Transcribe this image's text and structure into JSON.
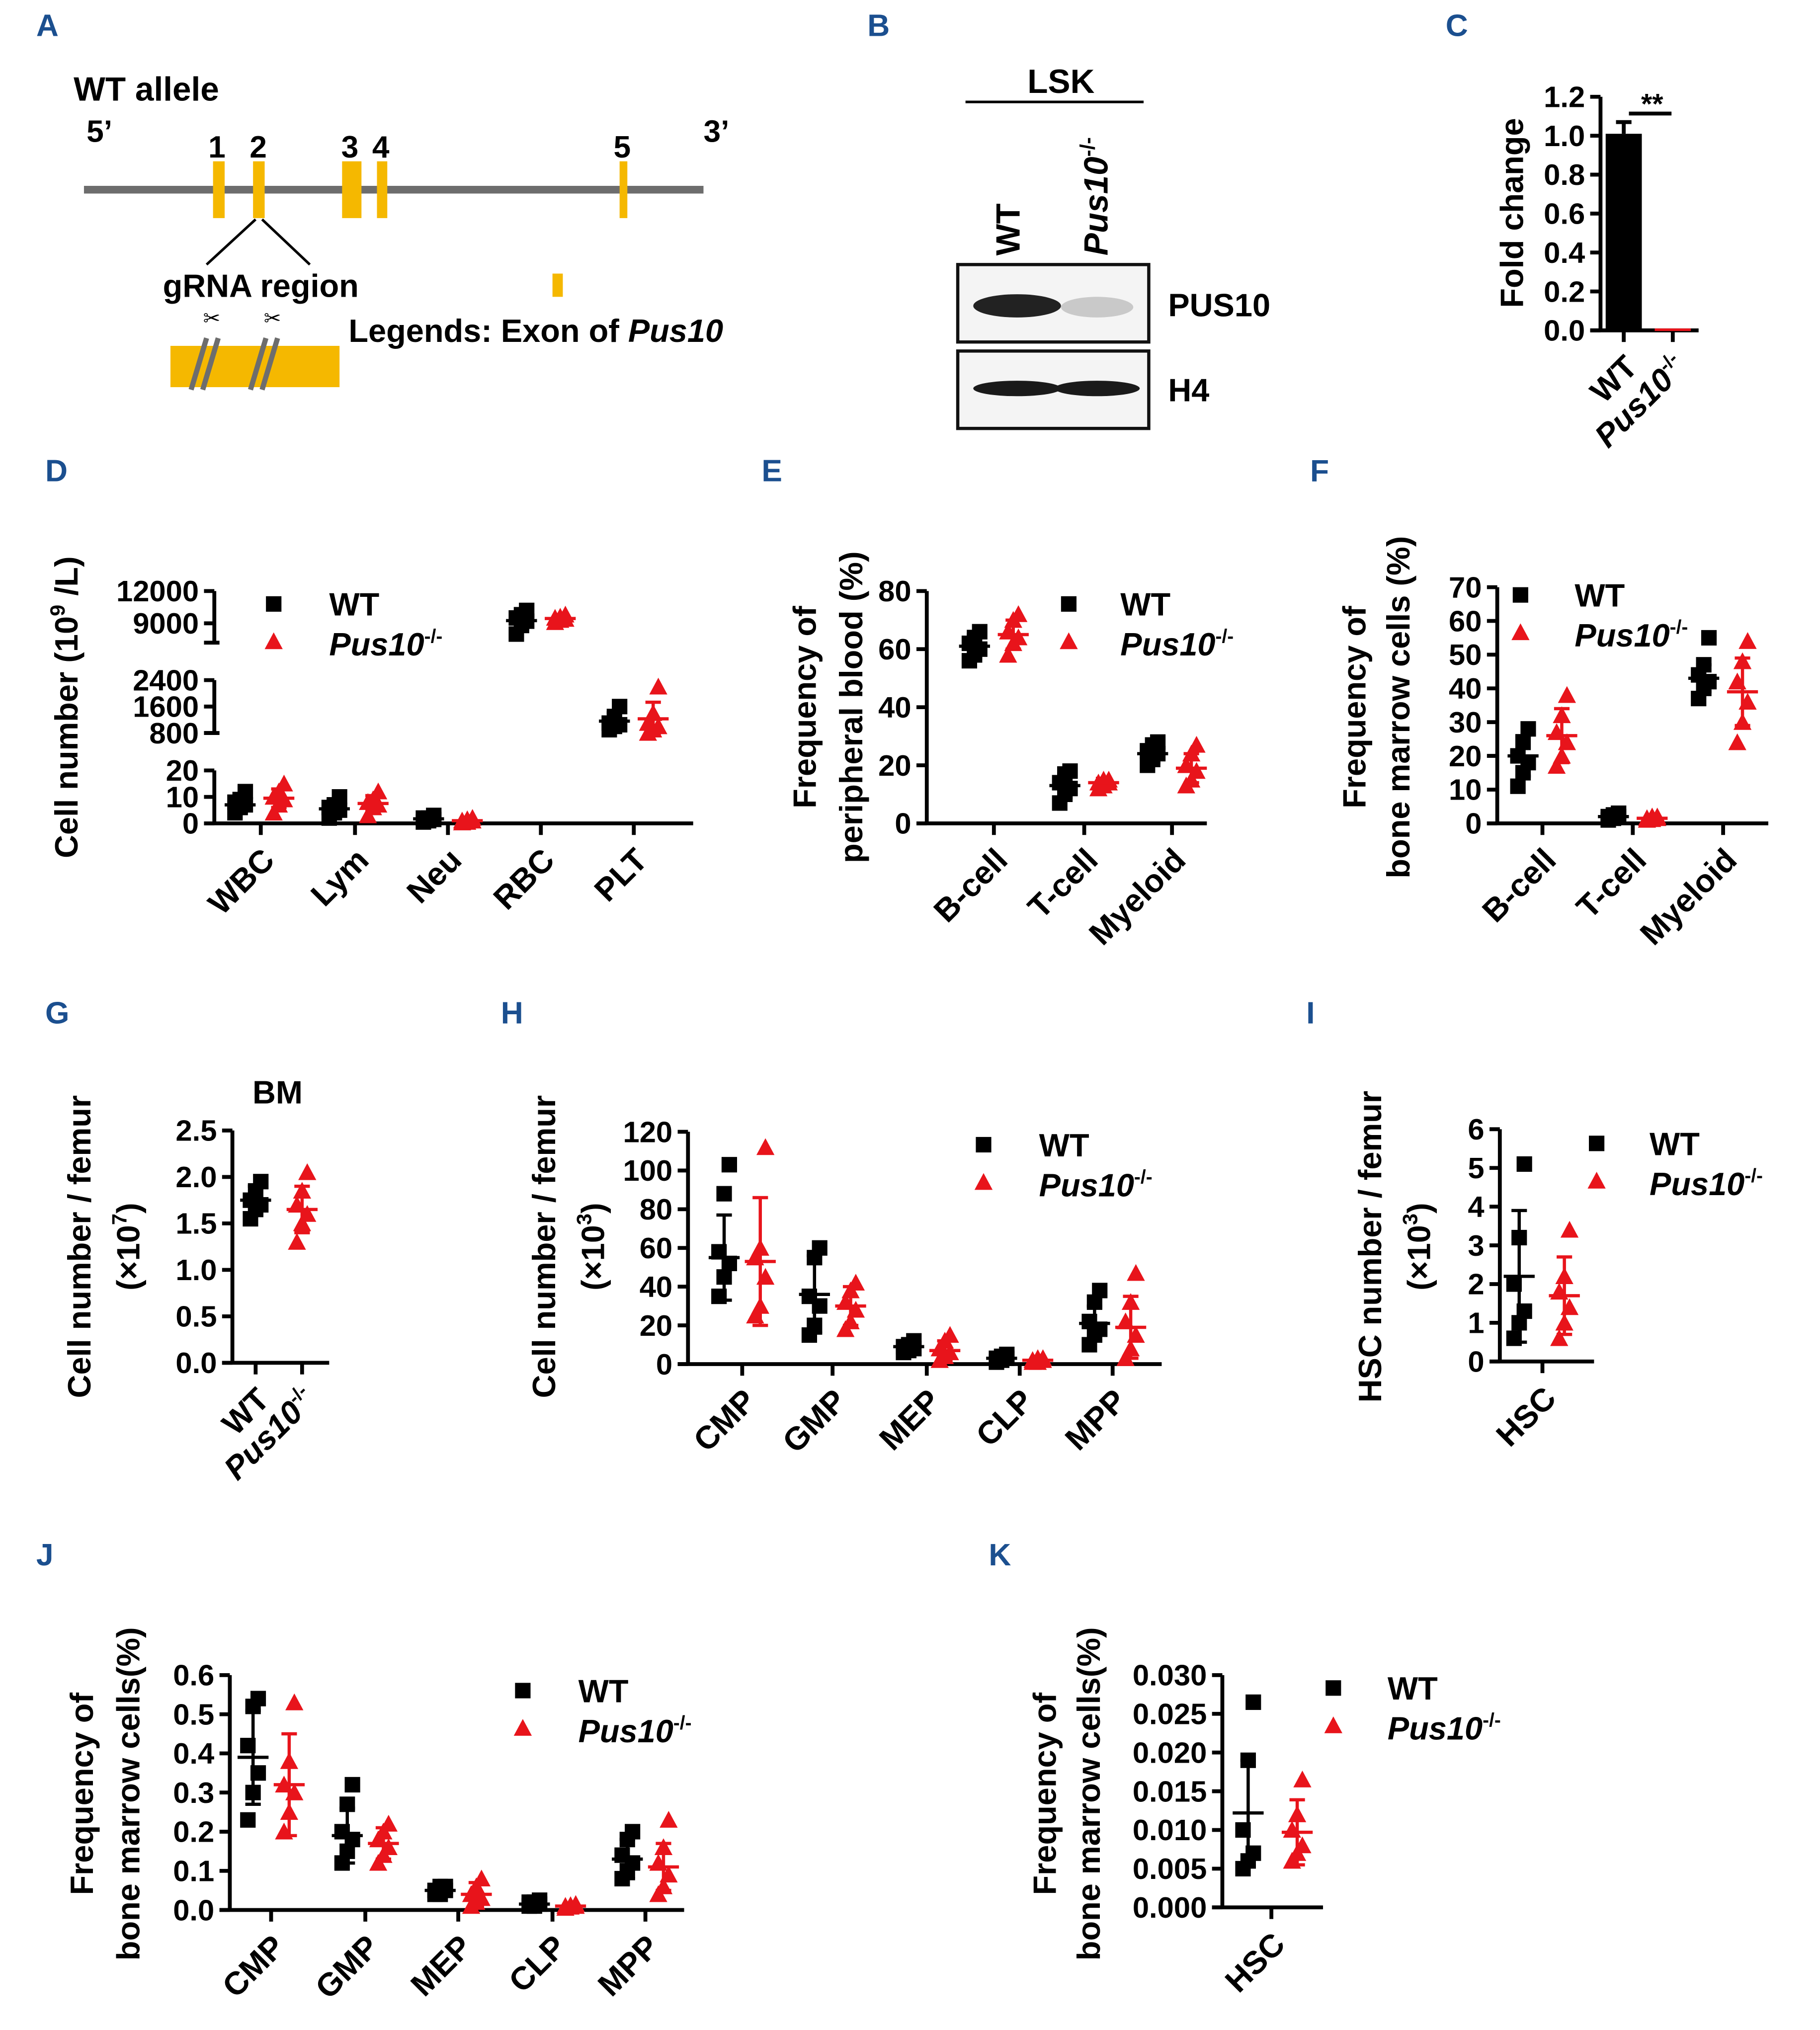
{
  "genotypes": {
    "wt": {
      "name": "WT"
    },
    "ko": {
      "name": "Pus10",
      "sup": "-/-"
    }
  },
  "colors": {
    "wt": "#000000",
    "ko": "#e8141b",
    "exon": "#f5b800",
    "allele": "#6d6d6d",
    "panel_letter": "#1b4f8f"
  },
  "panels": {
    "A": {
      "letter": "A",
      "title": "WT allele",
      "five_prime": "5’",
      "three_prime": "3’",
      "exons": [
        "1",
        "2",
        "3",
        "4",
        "5"
      ],
      "grna": "gRNA region",
      "legend_prefix": "Legends: Exon of ",
      "legend_gene": "Pus10"
    },
    "B": {
      "letter": "B",
      "header": "LSK",
      "lane_wt": "WT",
      "lane_ko": "Pus10",
      "lane_ko_sup": "-/-",
      "band1": "PUS10",
      "band2": "H4"
    }
  },
  "chart_data": [
    {
      "id": "C",
      "letter": "C",
      "type": "bar",
      "ylabel": [
        "Fold change"
      ],
      "ylim": [
        0,
        1.2
      ],
      "yticks": [
        "0.0",
        "0.2",
        "0.4",
        "0.6",
        "0.8",
        "1.0",
        "1.2"
      ],
      "categories": [
        "WT",
        "Pus10-/-"
      ],
      "significance": "**",
      "groups": [
        {
          "g": "wt",
          "mean": 1.01,
          "sd": 0.06
        },
        {
          "g": "ko",
          "mean": 0.01,
          "sd": 0
        }
      ]
    },
    {
      "id": "D",
      "letter": "D",
      "type": "scatter",
      "ylabel": [
        "Cell number (10",
        "9",
        " /L)"
      ],
      "broken_axis": [
        [
          0,
          20
        ],
        [
          800,
          2400
        ],
        [
          7200,
          12000
        ]
      ],
      "yticks": [
        [
          "0",
          "10",
          "20"
        ],
        [
          "800",
          "1600",
          "2400"
        ],
        [
          "9000",
          "12000"
        ]
      ],
      "categories": [
        "WBC",
        "Lym",
        "Neu",
        "RBC",
        "PLT"
      ],
      "legend": true,
      "groups": [
        {
          "g": "wt",
          "mean": 7,
          "sd": 3,
          "points": [
            4,
            6,
            7,
            8,
            9,
            12
          ]
        },
        {
          "g": "ko",
          "mean": 9.5,
          "sd": 3.5,
          "points": [
            4,
            7,
            9,
            10,
            12,
            15
          ]
        },
        {
          "g": "wt",
          "mean": 5.5,
          "sd": 3,
          "points": [
            2,
            4,
            5,
            6,
            7,
            10
          ]
        },
        {
          "g": "ko",
          "mean": 7.5,
          "sd": 3,
          "points": [
            3,
            6,
            7,
            8,
            9,
            12
          ]
        },
        {
          "g": "wt",
          "mean": 1.7,
          "sd": 0.9,
          "points": [
            0.5,
            1,
            1.5,
            2,
            2,
            3
          ]
        },
        {
          "g": "ko",
          "mean": 1,
          "sd": 0.6,
          "points": [
            0.3,
            0.5,
            1,
            1,
            1.5,
            2
          ]
        },
        {
          "g": "wt",
          "mean": 9250,
          "sd": 750,
          "points": [
            8000,
            8800,
            9200,
            9500,
            9800,
            10200
          ]
        },
        {
          "g": "ko",
          "mean": 9450,
          "sd": 250,
          "points": [
            9100,
            9300,
            9400,
            9500,
            9600,
            9800
          ]
        },
        {
          "g": "wt",
          "mean": 1160,
          "sd": 250,
          "points": [
            900,
            1000,
            1050,
            1100,
            1300,
            1600
          ]
        },
        {
          "g": "ko",
          "mean": 1230,
          "sd": 500,
          "points": [
            800,
            900,
            1000,
            1100,
            1400,
            2200
          ]
        }
      ]
    },
    {
      "id": "E",
      "letter": "E",
      "type": "scatter",
      "ylabel": [
        "Frequency of",
        "peripheral blood (%)"
      ],
      "ylim": [
        0,
        80
      ],
      "yticks": [
        "0",
        "20",
        "40",
        "60",
        "80"
      ],
      "categories": [
        "B-cell",
        "T-cell",
        "Myeloid"
      ],
      "legend": true,
      "groups": [
        {
          "g": "wt",
          "mean": 61,
          "sd": 4,
          "points": [
            56,
            58,
            60,
            62,
            64,
            66
          ]
        },
        {
          "g": "ko",
          "mean": 65,
          "sd": 5,
          "points": [
            58,
            62,
            64,
            66,
            70,
            72
          ]
        },
        {
          "g": "wt",
          "mean": 13,
          "sd": 4,
          "points": [
            7,
            10,
            12,
            14,
            17,
            18
          ]
        },
        {
          "g": "ko",
          "mean": 14,
          "sd": 1.5,
          "points": [
            12,
            13,
            14,
            14,
            15,
            15
          ]
        },
        {
          "g": "wt",
          "mean": 24,
          "sd": 3,
          "points": [
            20,
            22,
            24,
            25,
            27,
            28
          ]
        },
        {
          "g": "ko",
          "mean": 19,
          "sd": 5,
          "points": [
            13,
            15,
            18,
            20,
            24,
            27
          ]
        }
      ]
    },
    {
      "id": "F",
      "letter": "F",
      "type": "scatter",
      "ylabel": [
        "Frequency of",
        "bone marrow cells (%)"
      ],
      "ylim": [
        0,
        70
      ],
      "yticks": [
        "0",
        "10",
        "20",
        "30",
        "40",
        "50",
        "60",
        "70"
      ],
      "categories": [
        "B-cell",
        "T-cell",
        "Myeloid"
      ],
      "legend": true,
      "groups": [
        {
          "g": "wt",
          "mean": 20,
          "sd": 6,
          "points": [
            11,
            15,
            18,
            20,
            24,
            28
          ]
        },
        {
          "g": "ko",
          "mean": 26,
          "sd": 8,
          "points": [
            17,
            20,
            24,
            27,
            32,
            38
          ]
        },
        {
          "g": "wt",
          "mean": 2,
          "sd": 0.7,
          "points": [
            1,
            1.5,
            2,
            2,
            2.5,
            3
          ]
        },
        {
          "g": "ko",
          "mean": 1.5,
          "sd": 0.5,
          "points": [
            1,
            1.2,
            1.5,
            1.5,
            2,
            2
          ]
        },
        {
          "g": "wt",
          "mean": 43,
          "sd": 4,
          "points": [
            37,
            40,
            42,
            44,
            47,
            55
          ]
        },
        {
          "g": "ko",
          "mean": 39,
          "sd": 10,
          "points": [
            24,
            30,
            36,
            42,
            48,
            54
          ]
        }
      ]
    },
    {
      "id": "G",
      "letter": "G",
      "type": "scatter",
      "title": "BM",
      "ylabel": [
        "Cell number / femur",
        "(×10",
        "7",
        ")"
      ],
      "ylim": [
        0,
        2.5
      ],
      "yticks": [
        "0.0",
        "0.5",
        "1.0",
        "1.5",
        "2.0",
        "2.5"
      ],
      "categories": [
        "WT",
        "Pus10-/-"
      ],
      "groups": [
        {
          "g": "wt",
          "mean": 1.75,
          "sd": 0.15,
          "points": [
            1.55,
            1.65,
            1.7,
            1.75,
            1.85,
            1.95
          ]
        },
        {
          "g": "ko",
          "mean": 1.65,
          "sd": 0.25,
          "points": [
            1.3,
            1.5,
            1.6,
            1.7,
            1.85,
            2.05
          ]
        }
      ]
    },
    {
      "id": "H",
      "letter": "H",
      "type": "scatter",
      "ylabel": [
        "Cell number / femur",
        "(×10",
        "3",
        ")"
      ],
      "ylim": [
        0,
        120
      ],
      "yticks": [
        "0",
        "20",
        "40",
        "60",
        "80",
        "100",
        "120"
      ],
      "categories": [
        "CMP",
        "GMP",
        "MEP",
        "CLP",
        "MPP"
      ],
      "legend": true,
      "groups": [
        {
          "g": "wt",
          "mean": 55,
          "sd": 22,
          "points": [
            35,
            45,
            52,
            58,
            88,
            103
          ]
        },
        {
          "g": "ko",
          "mean": 53,
          "sd": 33,
          "points": [
            25,
            30,
            45,
            55,
            60,
            112
          ]
        },
        {
          "g": "wt",
          "mean": 36,
          "sd": 20,
          "points": [
            15,
            20,
            30,
            35,
            55,
            60
          ]
        },
        {
          "g": "ko",
          "mean": 30,
          "sd": 10,
          "points": [
            18,
            22,
            28,
            32,
            38,
            42
          ]
        },
        {
          "g": "wt",
          "mean": 9,
          "sd": 2,
          "points": [
            6,
            7,
            8,
            9,
            10,
            12
          ]
        },
        {
          "g": "ko",
          "mean": 7,
          "sd": 5,
          "points": [
            2,
            4,
            6,
            8,
            12,
            15
          ]
        },
        {
          "g": "wt",
          "mean": 3,
          "sd": 1.5,
          "points": [
            1,
            2,
            3,
            3,
            4,
            5
          ]
        },
        {
          "g": "ko",
          "mean": 2,
          "sd": 1,
          "points": [
            1,
            1,
            2,
            2,
            3,
            3
          ]
        },
        {
          "g": "wt",
          "mean": 21,
          "sd": 9,
          "points": [
            10,
            15,
            18,
            22,
            32,
            38
          ]
        },
        {
          "g": "ko",
          "mean": 19,
          "sd": 16,
          "points": [
            3,
            8,
            15,
            22,
            32,
            47
          ]
        }
      ]
    },
    {
      "id": "I",
      "letter": "I",
      "type": "scatter",
      "ylabel": [
        "HSC number / femur",
        "(×10",
        "3",
        ")"
      ],
      "ylim": [
        0,
        6
      ],
      "yticks": [
        "0",
        "1",
        "2",
        "3",
        "4",
        "5",
        "6"
      ],
      "categories": [
        "HSC"
      ],
      "legend": true,
      "groups": [
        {
          "g": "wt",
          "mean": 2.2,
          "sd": 1.7,
          "points": [
            0.6,
            1,
            1.3,
            2,
            3.2,
            5.1
          ]
        },
        {
          "g": "ko",
          "mean": 1.7,
          "sd": 1.0,
          "points": [
            0.6,
            1,
            1.4,
            1.8,
            2.2,
            3.4
          ]
        }
      ]
    },
    {
      "id": "J",
      "letter": "J",
      "type": "scatter",
      "ylabel": [
        "Frequency of",
        "bone marrow cells(%)"
      ],
      "ylim": [
        0,
        0.6
      ],
      "yticks": [
        "0.0",
        "0.1",
        "0.2",
        "0.3",
        "0.4",
        "0.5",
        "0.6"
      ],
      "categories": [
        "CMP",
        "GMP",
        "MEP",
        "CLP",
        "MPP"
      ],
      "legend": true,
      "groups": [
        {
          "g": "wt",
          "mean": 0.39,
          "sd": 0.12,
          "points": [
            0.23,
            0.3,
            0.35,
            0.42,
            0.52,
            0.54
          ]
        },
        {
          "g": "ko",
          "mean": 0.32,
          "sd": 0.13,
          "points": [
            0.2,
            0.25,
            0.3,
            0.32,
            0.38,
            0.53
          ]
        },
        {
          "g": "wt",
          "mean": 0.19,
          "sd": 0.07,
          "points": [
            0.12,
            0.15,
            0.18,
            0.2,
            0.27,
            0.32
          ]
        },
        {
          "g": "ko",
          "mean": 0.17,
          "sd": 0.04,
          "points": [
            0.12,
            0.14,
            0.16,
            0.18,
            0.2,
            0.22
          ]
        },
        {
          "g": "wt",
          "mean": 0.05,
          "sd": 0.01,
          "points": [
            0.04,
            0.04,
            0.05,
            0.05,
            0.06,
            0.06
          ]
        },
        {
          "g": "ko",
          "mean": 0.04,
          "sd": 0.03,
          "points": [
            0.01,
            0.02,
            0.03,
            0.04,
            0.06,
            0.08
          ]
        },
        {
          "g": "wt",
          "mean": 0.015,
          "sd": 0.01,
          "points": [
            0.01,
            0.01,
            0.015,
            0.02,
            0.02,
            0.025
          ]
        },
        {
          "g": "ko",
          "mean": 0.01,
          "sd": 0.005,
          "points": [
            0.005,
            0.008,
            0.01,
            0.01,
            0.012,
            0.015
          ]
        },
        {
          "g": "wt",
          "mean": 0.13,
          "sd": 0.05,
          "points": [
            0.08,
            0.1,
            0.12,
            0.14,
            0.18,
            0.2
          ]
        },
        {
          "g": "ko",
          "mean": 0.11,
          "sd": 0.06,
          "points": [
            0.04,
            0.06,
            0.09,
            0.12,
            0.16,
            0.23
          ]
        }
      ]
    },
    {
      "id": "K",
      "letter": "K",
      "type": "scatter",
      "ylabel": [
        "Frequency of",
        "bone marrow cells(%)"
      ],
      "ylim": [
        0,
        0.03
      ],
      "yticks": [
        "0.000",
        "0.005",
        "0.010",
        "0.015",
        "0.020",
        "0.025",
        "0.030"
      ],
      "categories": [
        "HSC"
      ],
      "legend": true,
      "groups": [
        {
          "g": "wt",
          "mean": 0.0122,
          "sd": 0.0068,
          "points": [
            0.005,
            0.006,
            0.007,
            0.01,
            0.019,
            0.0265
          ]
        },
        {
          "g": "ko",
          "mean": 0.0097,
          "sd": 0.0042,
          "points": [
            0.006,
            0.007,
            0.008,
            0.01,
            0.012,
            0.0165
          ]
        }
      ]
    }
  ]
}
